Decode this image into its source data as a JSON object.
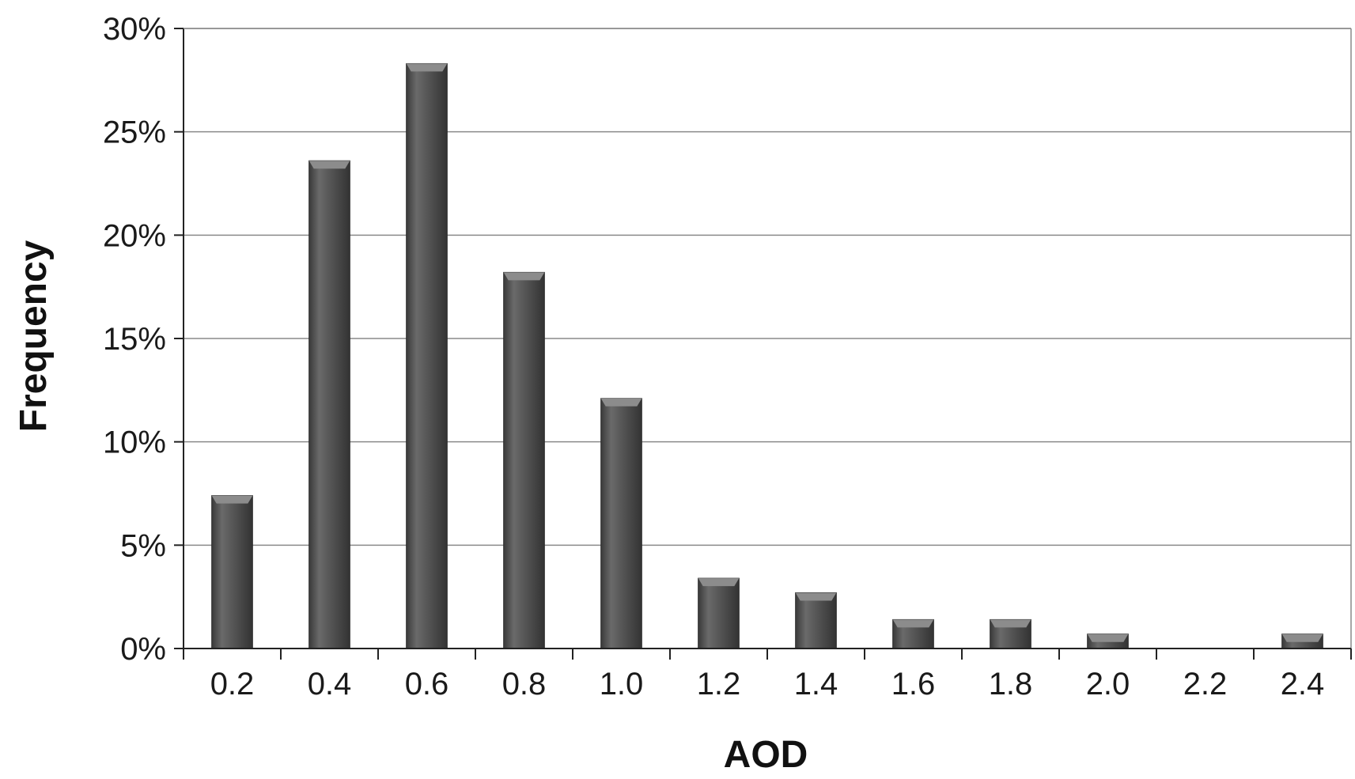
{
  "chart_data": {
    "type": "bar",
    "title": "",
    "xlabel": "AOD",
    "ylabel": "Frequency",
    "categories": [
      "0.2",
      "0.4",
      "0.6",
      "0.8",
      "1.0",
      "1.2",
      "1.4",
      "1.6",
      "1.8",
      "2.0",
      "2.2",
      "2.4"
    ],
    "values": [
      7.4,
      23.6,
      28.3,
      18.2,
      12.1,
      3.4,
      2.7,
      1.4,
      1.4,
      0.7,
      0,
      0.7
    ],
    "ylim": [
      0,
      30
    ],
    "yticks": [
      "0%",
      "5%",
      "10%",
      "15%",
      "20%",
      "25%",
      "30%"
    ],
    "grid": true,
    "legend": "none",
    "bar_color": "#555555",
    "grid_color": "#8a8a8a"
  }
}
